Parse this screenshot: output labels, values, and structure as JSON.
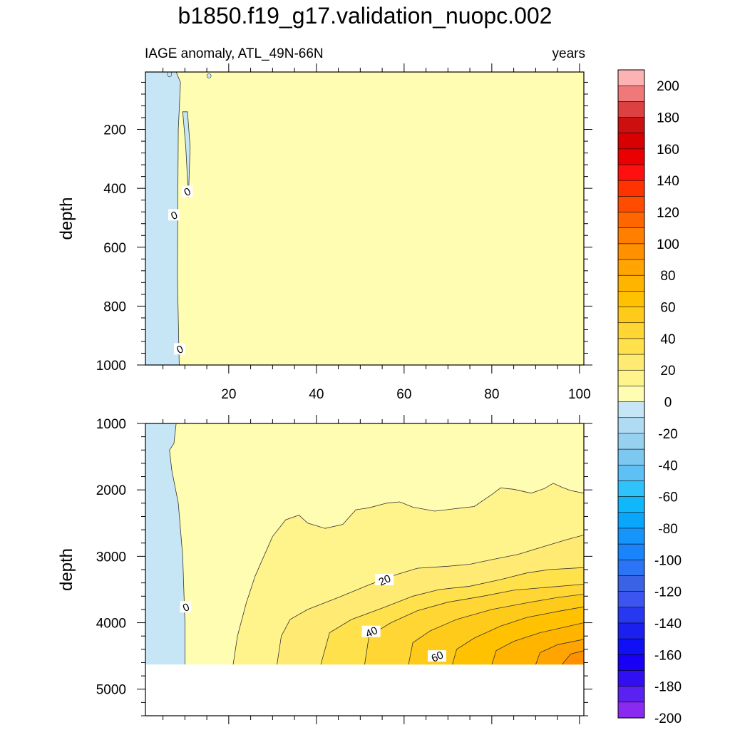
{
  "title": "b1850.f19_g17.validation_nuopc.002",
  "subtitle_left": "IAGE anomaly, ATL_49N-66N",
  "subtitle_right": "years",
  "chart_data": [
    {
      "type": "contour",
      "panel": "upper",
      "ylabel": "depth",
      "xlim": [
        1,
        101
      ],
      "ylim": [
        1000,
        5
      ],
      "y_reversed": true,
      "xticks": [
        20,
        40,
        60,
        80,
        100
      ],
      "xtick_labels": [
        "20",
        "40",
        "60",
        "80",
        "100"
      ],
      "yticks": [
        200,
        400,
        600,
        800,
        1000
      ],
      "ytick_labels": [
        "200",
        "400",
        "600",
        "800",
        "1000"
      ],
      "regions": [
        {
          "level": "-10..0",
          "color": "#c6e6f5"
        },
        {
          "level": "0..10",
          "color": "#fffdb2"
        }
      ],
      "zero_contour": [
        [
          1,
          5
        ],
        [
          8,
          5
        ],
        [
          9,
          40
        ],
        [
          8.5,
          200
        ],
        [
          8.4,
          420
        ],
        [
          8.3,
          700
        ],
        [
          8.7,
          1000
        ]
      ],
      "contour_labels": [
        {
          "text": "0",
          "x": 10.5,
          "y": 410
        },
        {
          "text": "0",
          "x": 7.5,
          "y": 490
        },
        {
          "text": "0",
          "x": 8.8,
          "y": 945
        }
      ]
    },
    {
      "type": "contour",
      "panel": "lower",
      "ylabel": "depth",
      "xlim": [
        1,
        101
      ],
      "ylim": [
        5400,
        1000
      ],
      "y_reversed": true,
      "xticks": [
        20,
        40,
        60,
        80,
        100
      ],
      "yticks": [
        1000,
        2000,
        3000,
        4000,
        5000
      ],
      "ytick_labels": [
        "1000",
        "2000",
        "3000",
        "4000",
        "5000"
      ],
      "data_bottom": 4630,
      "levels": [
        0,
        10,
        20,
        25,
        30,
        35,
        40,
        45,
        50,
        55,
        60,
        65,
        70
      ],
      "contours": [
        {
          "value": 0,
          "points": [
            [
              8,
              1000
            ],
            [
              7.5,
              1300
            ],
            [
              6.5,
              1400
            ],
            [
              7,
              1700
            ],
            [
              8.5,
              2200
            ],
            [
              9.5,
              3000
            ],
            [
              10,
              4000
            ],
            [
              10,
              4630
            ]
          ]
        },
        {
          "value": 10,
          "points": [
            [
              21,
              4630
            ],
            [
              22,
              4200
            ],
            [
              24,
              3700
            ],
            [
              26,
              3300
            ],
            [
              30,
              2700
            ],
            [
              33,
              2450
            ],
            [
              36,
              2380
            ],
            [
              38,
              2500
            ],
            [
              42,
              2580
            ],
            [
              46,
              2520
            ],
            [
              49,
              2300
            ],
            [
              52,
              2270
            ],
            [
              56,
              2200
            ],
            [
              59,
              2180
            ],
            [
              62,
              2260
            ],
            [
              67,
              2320
            ],
            [
              72,
              2280
            ],
            [
              76,
              2250
            ],
            [
              80,
              2070
            ],
            [
              82,
              1970
            ],
            [
              85,
              1990
            ],
            [
              89,
              2050
            ],
            [
              92,
              1980
            ],
            [
              94,
              1900
            ],
            [
              96,
              1960
            ],
            [
              98,
              2010
            ],
            [
              101,
              2050
            ]
          ]
        },
        {
          "value": 20,
          "points": [
            [
              31,
              4630
            ],
            [
              32,
              4200
            ],
            [
              34,
              3950
            ],
            [
              38,
              3800
            ],
            [
              45,
              3620
            ],
            [
              52,
              3430
            ],
            [
              58,
              3280
            ],
            [
              63,
              3180
            ],
            [
              70,
              3150
            ],
            [
              75,
              3120
            ],
            [
              80,
              3050
            ],
            [
              86,
              2970
            ],
            [
              92,
              2850
            ],
            [
              97,
              2750
            ],
            [
              101,
              2680
            ]
          ]
        },
        {
          "value": 25,
          "points": [
            [
              41,
              4630
            ],
            [
              43,
              4150
            ],
            [
              48,
              3950
            ],
            [
              55,
              3780
            ],
            [
              62,
              3600
            ],
            [
              68,
              3500
            ],
            [
              75,
              3450
            ],
            [
              82,
              3350
            ],
            [
              88,
              3250
            ],
            [
              93,
              3200
            ],
            [
              101,
              3170
            ]
          ]
        },
        {
          "value": 30,
          "points": [
            [
              51,
              4630
            ],
            [
              52,
              4200
            ],
            [
              57,
              4000
            ],
            [
              63,
              3820
            ],
            [
              70,
              3690
            ],
            [
              78,
              3600
            ],
            [
              85,
              3510
            ],
            [
              92,
              3470
            ],
            [
              101,
              3420
            ]
          ]
        },
        {
          "value": 35,
          "points": [
            [
              61,
              4630
            ],
            [
              62,
              4300
            ],
            [
              66,
              4120
            ],
            [
              72,
              3950
            ],
            [
              80,
              3800
            ],
            [
              88,
              3700
            ],
            [
              95,
              3620
            ],
            [
              101,
              3570
            ]
          ]
        },
        {
          "value": 40,
          "points": [
            [
              71,
              4630
            ],
            [
              72,
              4400
            ],
            [
              76,
              4230
            ],
            [
              82,
              4050
            ],
            [
              88,
              3920
            ],
            [
              95,
              3830
            ],
            [
              101,
              3760
            ]
          ]
        },
        {
          "value": 45,
          "points": [
            [
              80,
              4630
            ],
            [
              81,
              4420
            ],
            [
              85,
              4280
            ],
            [
              91,
              4150
            ],
            [
              97,
              4060
            ],
            [
              101,
              4000
            ]
          ]
        },
        {
          "value": 50,
          "points": [
            [
              90,
              4630
            ],
            [
              91,
              4450
            ],
            [
              95,
              4330
            ],
            [
              101,
              4250
            ]
          ]
        },
        {
          "value": 55,
          "points": [
            [
              96,
              4630
            ],
            [
              98,
              4470
            ],
            [
              101,
              4420
            ]
          ]
        }
      ],
      "contour_labels": [
        {
          "text": "0",
          "x": 10.2,
          "y": 3760
        },
        {
          "text": "20",
          "x": 55.5,
          "y": 3350
        },
        {
          "text": "40",
          "x": 52.5,
          "y": 4130
        },
        {
          "text": "60",
          "x": 67.5,
          "y": 4500
        }
      ]
    }
  ],
  "colorbar": {
    "labels": [
      "200",
      "180",
      "160",
      "140",
      "120",
      "100",
      "80",
      "60",
      "40",
      "20",
      "0",
      "-20",
      "-40",
      "-60",
      "-80",
      "-100",
      "-120",
      "-140",
      "-160",
      "-180",
      "-200"
    ],
    "colors": [
      "#fdb3b3",
      "#f07878",
      "#dd4040",
      "#cc1010",
      "#d80000",
      "#ea0000",
      "#ff1010",
      "#ff3300",
      "#ff4c00",
      "#ff6600",
      "#ff7f00",
      "#ff9000",
      "#ffa400",
      "#ffb400",
      "#ffc100",
      "#ffcb1a",
      "#ffd633",
      "#ffe14c",
      "#ffeb73",
      "#fff48c",
      "#fffdb2",
      "#c6e6f5",
      "#afdcf3",
      "#96d1f0",
      "#7cc8f0",
      "#5fc0f5",
      "#30c3fb",
      "#10b8fb",
      "#0aa6fb",
      "#1594fa",
      "#1a84fa",
      "#2a74f5",
      "#3a62e5",
      "#3c55f0",
      "#2838f0",
      "#1c20ef",
      "#1010f5",
      "#1800f5",
      "#3010f0",
      "#5a22f0",
      "#8a2af0"
    ]
  }
}
